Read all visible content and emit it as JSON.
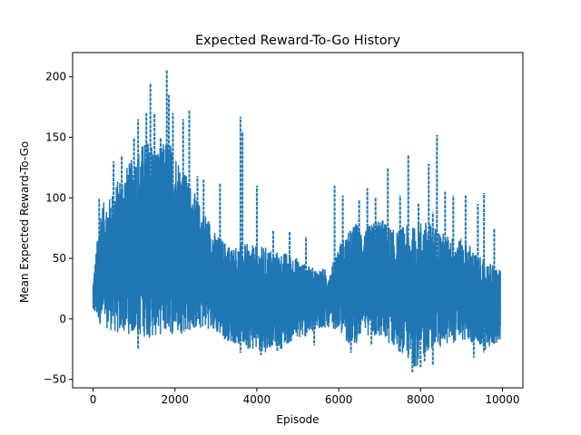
{
  "chart_data": {
    "type": "line",
    "title": "Expected Reward-To-Go History",
    "xlabel": "Episode",
    "ylabel": "Mean Expected Reward-To-Go",
    "xlim": [
      -500,
      10500
    ],
    "ylim": [
      -57,
      220
    ],
    "xticks": [
      0,
      2000,
      4000,
      6000,
      8000,
      10000
    ],
    "yticks": [
      -50,
      0,
      50,
      100,
      150,
      200
    ],
    "grid": false,
    "legend": "none",
    "series_color": "#1f77b4",
    "x_range": [
      0,
      9950
    ],
    "envelope": {
      "x": [
        0,
        100,
        200,
        400,
        600,
        800,
        1000,
        1200,
        1400,
        1600,
        1800,
        2000,
        2200,
        2400,
        2600,
        2800,
        3000,
        3200,
        3400,
        3600,
        3800,
        4000,
        4200,
        4400,
        4600,
        4800,
        5000,
        5200,
        5400,
        5600,
        5800,
        6000,
        6200,
        6400,
        6600,
        6800,
        7000,
        7200,
        7400,
        7600,
        7800,
        8000,
        8200,
        8400,
        8600,
        8800,
        9000,
        9200,
        9400,
        9600,
        9800,
        9950
      ],
      "low": [
        5,
        0,
        -6,
        -9,
        -13,
        -12,
        -14,
        -15,
        -16,
        -14,
        -12,
        -14,
        -12,
        -10,
        -9,
        -8,
        -12,
        -17,
        -20,
        -22,
        -25,
        -26,
        -28,
        -22,
        -25,
        -20,
        -17,
        -15,
        -12,
        -8,
        -7,
        -10,
        -20,
        -22,
        -12,
        -15,
        -18,
        -20,
        -25,
        -30,
        -40,
        -38,
        -25,
        -25,
        -22,
        -20,
        -18,
        -20,
        -22,
        -26,
        -22,
        -18
      ],
      "high": [
        30,
        65,
        95,
        100,
        115,
        125,
        135,
        145,
        150,
        140,
        150,
        140,
        125,
        110,
        95,
        85,
        70,
        65,
        60,
        62,
        62,
        60,
        60,
        57,
        55,
        55,
        50,
        45,
        42,
        42,
        40,
        62,
        70,
        80,
        75,
        78,
        85,
        78,
        72,
        78,
        76,
        82,
        80,
        76,
        70,
        68,
        66,
        62,
        52,
        48,
        45,
        40
      ]
    },
    "spikes": [
      [
        150,
        100
      ],
      [
        500,
        130
      ],
      [
        700,
        135
      ],
      [
        1000,
        150
      ],
      [
        1100,
        165
      ],
      [
        1300,
        170
      ],
      [
        1400,
        195
      ],
      [
        1500,
        170
      ],
      [
        1650,
        150
      ],
      [
        1800,
        206
      ],
      [
        1850,
        185
      ],
      [
        1950,
        170
      ],
      [
        2200,
        165
      ],
      [
        2350,
        172
      ],
      [
        2550,
        118
      ],
      [
        2700,
        115
      ],
      [
        3100,
        112
      ],
      [
        3600,
        167
      ],
      [
        3650,
        155
      ],
      [
        4000,
        110
      ],
      [
        4400,
        73
      ],
      [
        4800,
        72
      ],
      [
        5200,
        68
      ],
      [
        5900,
        110
      ],
      [
        6100,
        102
      ],
      [
        6500,
        98
      ],
      [
        6700,
        108
      ],
      [
        6900,
        100
      ],
      [
        7200,
        125
      ],
      [
        7500,
        102
      ],
      [
        7700,
        135
      ],
      [
        7950,
        95
      ],
      [
        8200,
        128
      ],
      [
        8300,
        88
      ],
      [
        8400,
        152
      ],
      [
        8600,
        105
      ],
      [
        8800,
        102
      ],
      [
        9100,
        102
      ],
      [
        9400,
        95
      ],
      [
        9550,
        104
      ],
      [
        9800,
        75
      ]
    ],
    "dips": [
      [
        1100,
        -25
      ],
      [
        3600,
        -28
      ],
      [
        4100,
        -30
      ],
      [
        4500,
        -27
      ],
      [
        5400,
        -22
      ],
      [
        6300,
        -28
      ],
      [
        6800,
        -22
      ],
      [
        7500,
        -28
      ],
      [
        7800,
        -44
      ],
      [
        8000,
        -40
      ],
      [
        8100,
        -35
      ],
      [
        8300,
        -38
      ],
      [
        9300,
        -32
      ],
      [
        9550,
        -28
      ]
    ]
  }
}
